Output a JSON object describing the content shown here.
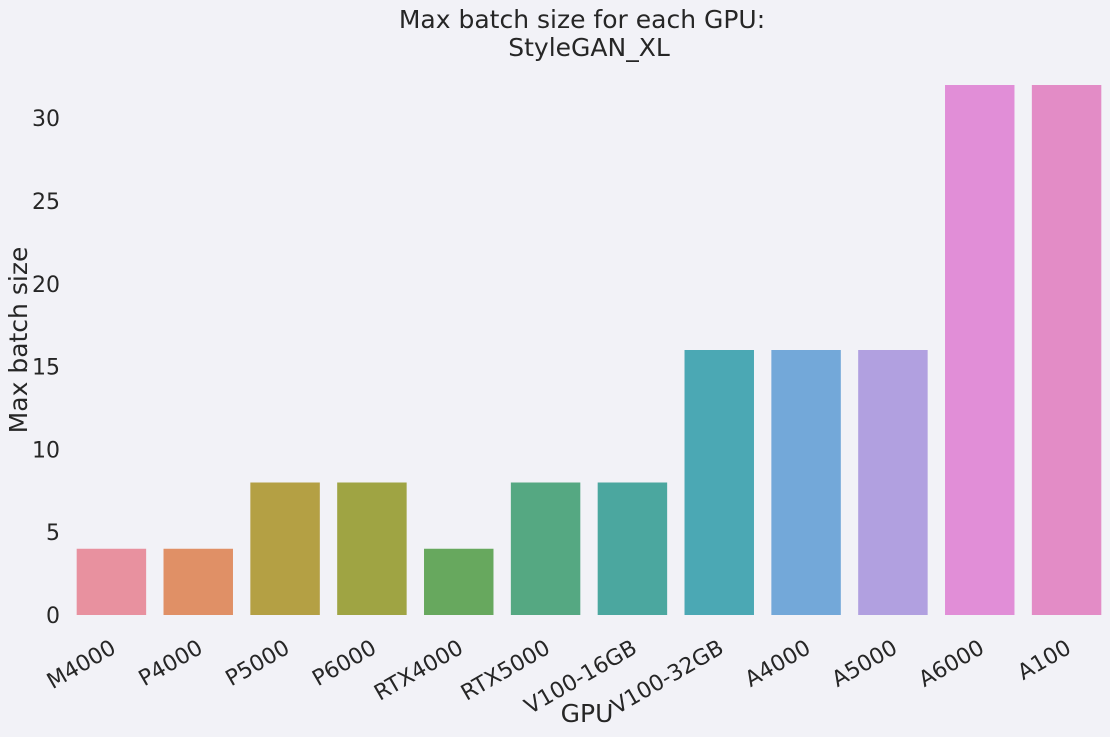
{
  "chart_data": {
    "type": "bar",
    "title_line1": "Max batch size for each GPU:",
    "title_line2": "StyleGAN_XL",
    "xlabel": "GPU",
    "ylabel": "Max batch size",
    "categories": [
      "M4000",
      "P4000",
      "P5000",
      "P6000",
      "RTX4000",
      "RTX5000",
      "V100-16GB",
      "V100-32GB",
      "A4000",
      "A5000",
      "A6000",
      "A100"
    ],
    "values": [
      4,
      4,
      8,
      8,
      4,
      8,
      8,
      16,
      16,
      16,
      32,
      32
    ],
    "colors": [
      "#e8919f",
      "#e09066",
      "#b4a044",
      "#9fa443",
      "#67a85e",
      "#55a882",
      "#4ba79f",
      "#4ba8b4",
      "#73a8d9",
      "#b1a0e0",
      "#e18ed7",
      "#e38cc6"
    ],
    "yticks": [
      0,
      5,
      10,
      15,
      20,
      25,
      30
    ],
    "ylim": [
      0,
      32
    ],
    "grid": false,
    "background": "#f2f2f7"
  }
}
